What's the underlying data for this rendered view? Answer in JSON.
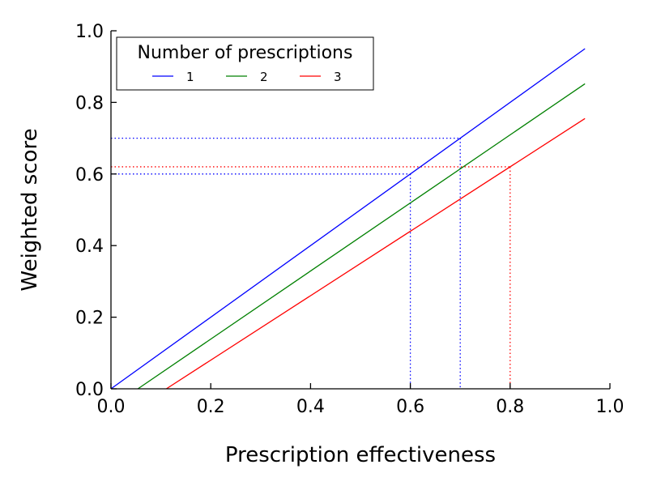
{
  "chart_data": {
    "type": "line",
    "xlabel": "Prescription effectiveness",
    "ylabel": "Weighted score",
    "xlim": [
      0.0,
      1.0
    ],
    "ylim": [
      0.0,
      1.0
    ],
    "x_ticks": [
      "0.0",
      "0.2",
      "0.4",
      "0.6",
      "0.8",
      "1.0"
    ],
    "y_ticks": [
      "0.0",
      "0.2",
      "0.4",
      "0.6",
      "0.8",
      "1.0"
    ],
    "grid": false,
    "legend": {
      "title": "Number of prescriptions",
      "placement": "top-left",
      "orientation": "horizontal"
    },
    "series": [
      {
        "name": "1",
        "color": "#0000ff",
        "x": [
          0.0,
          0.95
        ],
        "y": [
          0.0,
          0.95
        ]
      },
      {
        "name": "2",
        "color": "#008000",
        "x": [
          0.054,
          0.95
        ],
        "y": [
          0.0,
          0.852
        ]
      },
      {
        "name": "3",
        "color": "#ff0000",
        "x": [
          0.111,
          0.95
        ],
        "y": [
          0.0,
          0.755
        ]
      }
    ],
    "reference_lines": [
      {
        "color": "#0000ff",
        "x": 0.6,
        "y": 0.6
      },
      {
        "color": "#0000ff",
        "x": 0.7,
        "y": 0.7
      },
      {
        "color": "#ff0000",
        "x": 0.8,
        "y": 0.62
      }
    ]
  }
}
